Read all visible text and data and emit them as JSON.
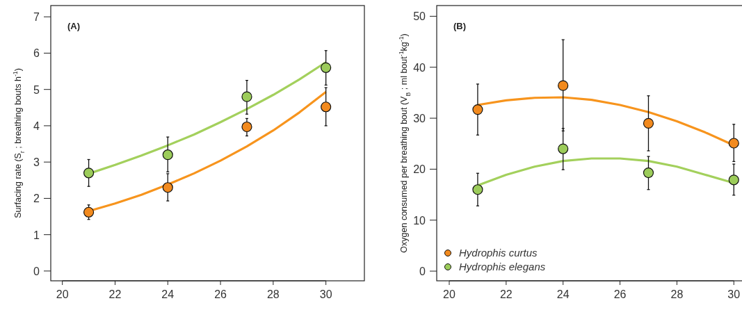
{
  "chart_data": [
    {
      "type": "scatter",
      "title": "(A)",
      "ylabel": "Surfacing rate (S$_{r}$ ; breathing bouts h$^{-1}$)",
      "xlim": [
        19.56,
        31.46
      ],
      "xticks": [
        20,
        22,
        24,
        26,
        28,
        30
      ],
      "ylim": [
        -0.27,
        7.31
      ],
      "yticks": [
        0,
        1,
        2,
        3,
        4,
        5,
        6,
        7
      ],
      "grid": false,
      "legend": false,
      "marker": "circle",
      "x": [
        21,
        24,
        27,
        30
      ],
      "series": [
        {
          "type": "line",
          "color": "#a3d05c",
          "marker": "none",
          "x": [
            21,
            22,
            23,
            24,
            25,
            26,
            27,
            28,
            29,
            30
          ],
          "values": [
            2.68,
            2.92,
            3.18,
            3.46,
            3.76,
            4.1,
            4.46,
            4.85,
            5.28,
            5.75
          ]
        },
        {
          "type": "line",
          "color": "#f7941d",
          "marker": "none",
          "x": [
            21,
            22,
            23,
            24,
            25,
            26,
            27,
            28,
            29,
            30
          ],
          "values": [
            1.65,
            1.86,
            2.1,
            2.38,
            2.69,
            3.04,
            3.43,
            3.87,
            4.37,
            4.93
          ]
        },
        {
          "color": "#9ccc5a",
          "values": [
            2.7,
            3.2,
            4.8,
            5.6
          ],
          "errors": [
            [
              2.33,
              3.07
            ],
            [
              2.73,
              3.69
            ],
            [
              4.32,
              5.25
            ],
            [
              5.12,
              6.07
            ]
          ]
        },
        {
          "color": "#f28a1e",
          "values": [
            1.62,
            2.3,
            3.97,
            4.52
          ],
          "errors": [
            [
              1.42,
              1.82
            ],
            [
              1.93,
              2.68
            ],
            [
              3.72,
              4.2
            ],
            [
              4.0,
              5.05
            ]
          ]
        }
      ]
    },
    {
      "type": "scatter",
      "title": "(B)",
      "ylabel": "Oxygen consumed per breathing bout (V$_{B}$ ; ml bout$^{-1}$kg$^{-1}$)",
      "xlim": [
        19.56,
        31.46
      ],
      "xticks": [
        20,
        22,
        24,
        26,
        28,
        30
      ],
      "ylim": [
        -1.9,
        52.1
      ],
      "yticks": [
        0,
        10,
        20,
        30,
        40,
        50
      ],
      "grid": false,
      "legend": "bottom left",
      "marker": "circle",
      "x": [
        21,
        24,
        27,
        30
      ],
      "series": [
        {
          "type": "line",
          "color": "#f7941d",
          "marker": "none",
          "x": [
            21,
            22,
            23,
            24,
            25,
            26,
            27,
            28,
            29,
            30
          ],
          "values": [
            32.6,
            33.5,
            34.0,
            34.1,
            33.6,
            32.6,
            31.2,
            29.4,
            27.2,
            24.7
          ]
        },
        {
          "type": "line",
          "color": "#a3d05c",
          "marker": "none",
          "x": [
            21,
            22,
            23,
            24,
            25,
            26,
            27,
            28,
            29,
            30
          ],
          "values": [
            16.8,
            18.9,
            20.5,
            21.6,
            22.1,
            22.1,
            21.6,
            20.5,
            18.9,
            17.3
          ]
        },
        {
          "name": "Hydrophis curtus",
          "color": "#f28a1e",
          "values": [
            31.7,
            36.4,
            29.0,
            25.1
          ],
          "errors": [
            [
              26.7,
              36.7
            ],
            [
              27.5,
              45.4
            ],
            [
              23.6,
              34.4
            ],
            [
              21.5,
              28.8
            ]
          ]
        },
        {
          "name": "Hydrophis elegans",
          "color": "#9ccc5a",
          "values": [
            16.0,
            24.0,
            19.3,
            17.9
          ],
          "errors": [
            [
              12.8,
              19.2
            ],
            [
              19.9,
              28.0
            ],
            [
              16.0,
              22.5
            ],
            [
              14.9,
              21.0
            ]
          ]
        }
      ]
    }
  ]
}
